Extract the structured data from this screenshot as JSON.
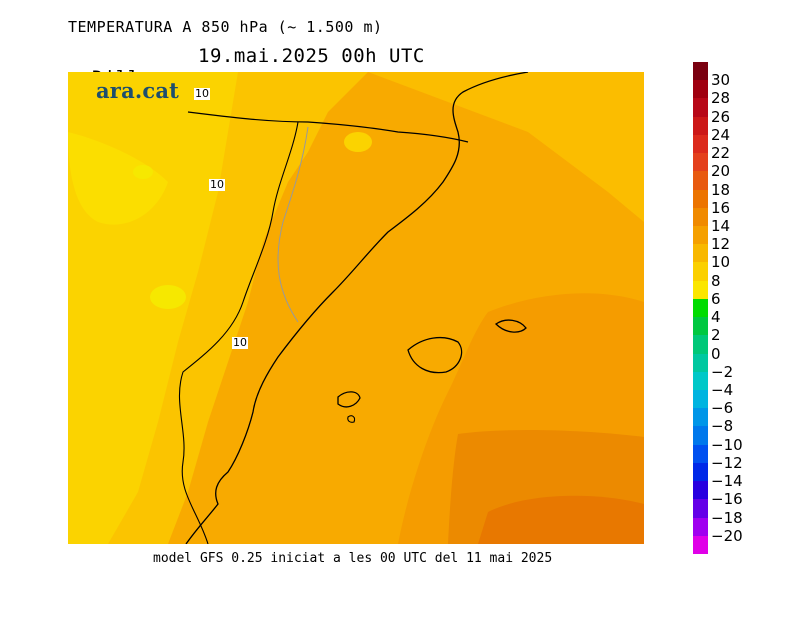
{
  "header": {
    "title": "TEMPERATURA A 850 hPa (~ 1.500 m)",
    "day": "Dilluns",
    "datetime": "19.mai.2025 00h UTC"
  },
  "map": {
    "logo": "ara.cat",
    "contour_labels": [
      "10",
      "10",
      "10"
    ]
  },
  "footer": "model GFS 0.25 iniciat a les 00 UTC del 11 mai 2025",
  "colorbar": {
    "labels": [
      "30",
      "28",
      "26",
      "24",
      "22",
      "20",
      "18",
      "16",
      "14",
      "12",
      "10",
      "8",
      "6",
      "4",
      "2",
      "0",
      "−2",
      "−4",
      "−6",
      "−8",
      "−10",
      "−12",
      "−14",
      "−16",
      "−18",
      "−20"
    ],
    "colors": [
      "#7a0010",
      "#a00010",
      "#b80818",
      "#cc1818",
      "#dc2a1c",
      "#e4401c",
      "#e85a10",
      "#ec7400",
      "#f08a00",
      "#f5a000",
      "#f8b800",
      "#fbd000",
      "#fbe600",
      "#00dc00",
      "#00c840",
      "#00c878",
      "#00c8a0",
      "#00c8c8",
      "#00b4e0",
      "#0096e8",
      "#0078ec",
      "#0050f0",
      "#0028e8",
      "#2800e0",
      "#6400e8",
      "#a000f0",
      "#e000e8"
    ]
  }
}
